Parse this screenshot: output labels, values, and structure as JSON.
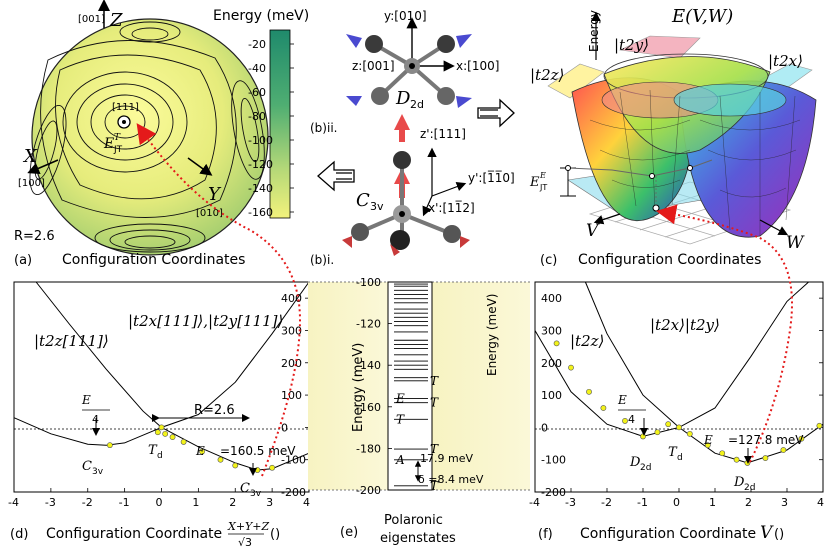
{
  "panel_a": {
    "letter": "(a)",
    "title": "Configuration Coordinates",
    "R_label": "R=2.6",
    "axis_Z": "Z",
    "axis_Z_dir": "[001]",
    "axis_X": "X",
    "axis_X_dir": "[100]",
    "axis_Y": "Y",
    "axis_Y_dir": "[010]",
    "point_label": "[111]",
    "ejt_label": "E",
    "ejt_sup": "T",
    "ejt_sub": "JT",
    "colorbar_title": "Energy (meV)",
    "colorbar_ticks": [
      "-20",
      "-40",
      "-60",
      "-80",
      "-100",
      "-120",
      "-140",
      "-160"
    ],
    "colors": {
      "low": "#f0f07a",
      "high": "#1f8a6c"
    }
  },
  "panel_b": {
    "label_ii": "(b)ii.",
    "label_i": "(b)i.",
    "d2d": {
      "y": "y:[010]",
      "z": "z:[001]",
      "x": "x:[100]",
      "sym": "D",
      "sym_sub": "2d"
    },
    "c3v": {
      "z": "z':[111]",
      "y": "y':[1̅1̅0]",
      "x": "x':[11̅2]",
      "sym": "C",
      "sym_sub": "3v"
    }
  },
  "panel_c": {
    "letter": "(c)",
    "title": "Configuration Coordinates",
    "energy_label": "Energy",
    "e_label": "E(V,W)",
    "state_t2y": "|t2y⟩",
    "state_t2z": "|t2z⟩",
    "state_t2x": "|t2x⟩",
    "ejt": "E",
    "ejt_sup": "E",
    "ejt_sub": "JT",
    "axis_V": "V",
    "axis_W": "W"
  },
  "panel_d": {
    "letter": "(d)",
    "xlabel": "Configuration Coordinate",
    "xlabel_frac_num": "X+Y+Z",
    "xlabel_frac_den": "√3",
    "xlabel_unit": "()",
    "ejt_quarter_num": "E",
    "ejt_quarter_den": "4",
    "ejt_value": "=160.5 meV",
    "R_label": "R=2.6",
    "sym_c3v": "C",
    "sym_c3v_sub": "3v",
    "sym_td": "T",
    "sym_td_sub": "d",
    "state_t2z": "|t2z[111]⟩",
    "state_t2xy": "|t2x[111]⟩,|t2y[111]⟩"
  },
  "panel_e": {
    "letter": "(e)",
    "title_line1": "Polaronic",
    "title_line2": "eigenstates",
    "ylabel": "Energy (meV)",
    "level_labels": [
      "T",
      "E",
      "T",
      "T",
      "T",
      "A",
      "T"
    ],
    "gap1": "17.9 meV",
    "gap2": "δ =8.4 meV"
  },
  "panel_f": {
    "letter": "(f)",
    "xlabel": "Configuration Coordinate",
    "xlabel_var": "V",
    "xlabel_unit": "()",
    "ejt_value": "=127.8 meV",
    "sym_d2d": "D",
    "sym_d2d_sub": "2d",
    "sym_td": "T",
    "sym_td_sub": "d",
    "state_t2z": "|t2z⟩",
    "state_t2xy": "|t2x⟩|t2y⟩"
  },
  "chart_data": [
    {
      "type": "line",
      "panel": "d",
      "xlim": [
        -4,
        4
      ],
      "ylim": [
        -200,
        450
      ],
      "xticks": [
        -4,
        -3,
        -2,
        -1,
        0,
        1,
        2,
        3,
        4
      ],
      "yticks": [
        -200,
        -100,
        0,
        100,
        200,
        300,
        400
      ],
      "ylabel": "Energy (meV)",
      "series": [
        {
          "x": [
            -4,
            -3,
            -2,
            -1.5,
            -1,
            0,
            1,
            2,
            2.6,
            3,
            4
          ],
          "y": [
            30,
            -20,
            -52,
            -55,
            -48,
            0,
            -60,
            -110,
            -132,
            -128,
            -80
          ]
        },
        {
          "x": [
            -3.4,
            -2.5,
            -1.5,
            -0.5,
            0,
            1,
            2,
            3,
            4
          ],
          "y": [
            450,
            320,
            180,
            50,
            0,
            40,
            140,
            290,
            480
          ]
        }
      ],
      "points": {
        "x": [
          -1.4,
          -0.1,
          0,
          0.1,
          0.3,
          0.6,
          1.1,
          1.6,
          2.0,
          2.6,
          3.0
        ],
        "y": [
          -55,
          -15,
          0,
          -20,
          -30,
          -45,
          -75,
          -100,
          -118,
          -132,
          -125
        ]
      }
    },
    {
      "type": "line",
      "panel": "f",
      "xlim": [
        -4,
        4
      ],
      "ylim": [
        -200,
        450
      ],
      "xticks": [
        -4,
        -3,
        -2,
        -1,
        0,
        1,
        2,
        3,
        4
      ],
      "yticks": [
        -200,
        -100,
        0,
        100,
        200,
        300,
        400
      ],
      "ylabel": "Energy (meV)",
      "series": [
        {
          "x": [
            -4,
            -3,
            -2,
            -1,
            0,
            1,
            1.9,
            3,
            4
          ],
          "y": [
            300,
            110,
            10,
            -28,
            0,
            -80,
            -110,
            -70,
            10
          ]
        },
        {
          "x": [
            -2.6,
            -2,
            -1,
            0,
            1,
            2,
            3,
            3.6
          ],
          "y": [
            450,
            290,
            100,
            0,
            60,
            220,
            390,
            450
          ]
        }
      ],
      "points": {
        "x": [
          -3.4,
          -3.0,
          -2.5,
          -2.1,
          -1.5,
          -1.0,
          -0.6,
          -0.3,
          0,
          0.3,
          0.8,
          1.2,
          1.6,
          1.9,
          2.4,
          2.9,
          3.4,
          3.9
        ],
        "y": [
          260,
          185,
          110,
          60,
          20,
          -28,
          -15,
          10,
          0,
          -20,
          -55,
          -80,
          -100,
          -110,
          -95,
          -70,
          -35,
          5
        ]
      }
    },
    {
      "type": "levels",
      "panel": "e",
      "ylim": [
        -200,
        -100
      ],
      "yticks": [
        -200,
        -180,
        -160,
        -140,
        -120,
        -100
      ],
      "levels": [
        -198,
        -185.5,
        -180.3,
        -166,
        -158,
        -156,
        -147.5,
        -146,
        -142,
        -140,
        -138,
        -135,
        -132,
        -130,
        -128,
        -124,
        -121,
        -119,
        -117,
        -115,
        -113,
        -110,
        -108,
        -106,
        -104,
        -102,
        -101
      ]
    }
  ]
}
